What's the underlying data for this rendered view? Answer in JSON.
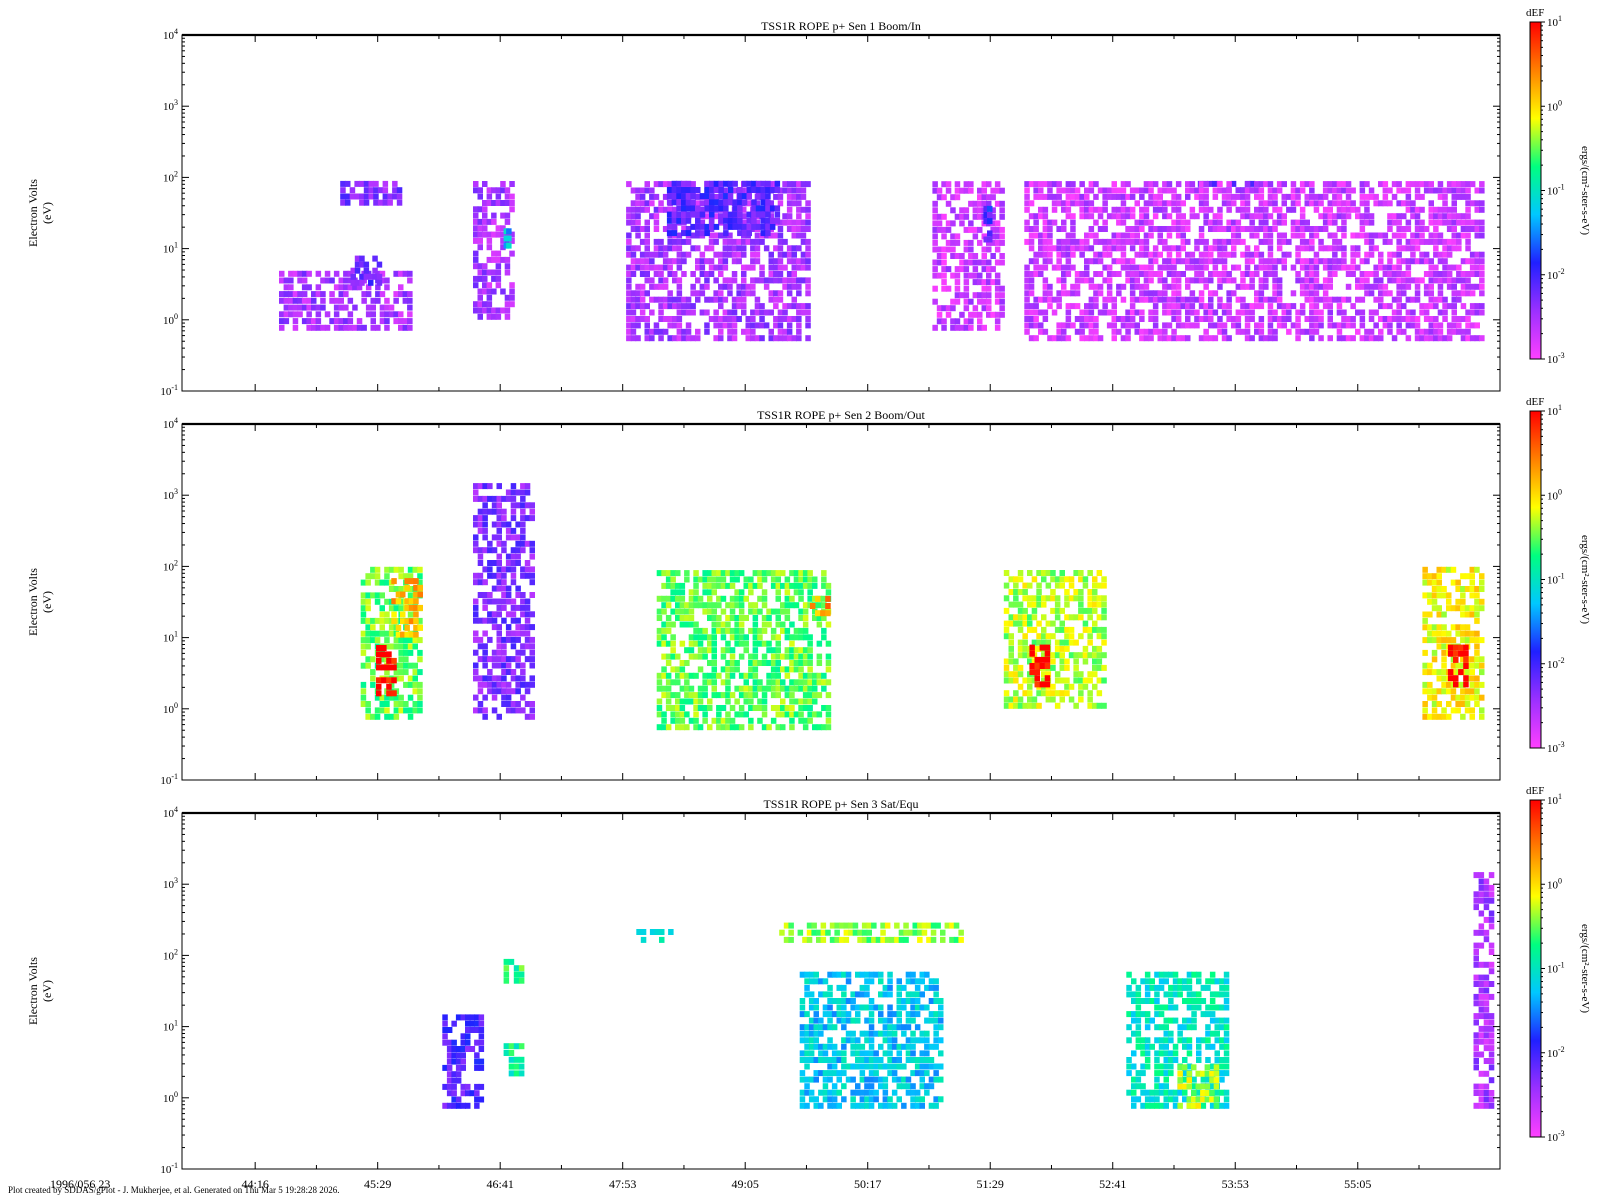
{
  "chart_data": {
    "type": "heatmap",
    "date_label": "1996/056 23",
    "x_tick_labels": [
      "44:16",
      "45:29",
      "46:41",
      "47:53",
      "49:05",
      "50:17",
      "51:29",
      "52:41",
      "53:53",
      "55:05"
    ],
    "y_scale": "log",
    "y_tick_values": [
      0.1,
      1,
      10,
      100,
      1000,
      10000
    ],
    "ylim": [
      0.1,
      10000
    ],
    "colorbar": {
      "title": "dEF",
      "unit": "ergs/(cm²-ster-s-eV)",
      "scale": "log",
      "range": [
        0.001,
        10
      ],
      "tick_values": [
        0.001,
        0.01,
        0.1,
        1,
        10
      ],
      "colors": [
        "#ff40ff",
        "#9b30ff",
        "#2020ff",
        "#00c8ff",
        "#00ff80",
        "#ffff00",
        "#ff8000",
        "#ff0000"
      ]
    },
    "panels": [
      {
        "title": "TSS1R ROPE p+ Sen 1 Boom/In",
        "ylabel_line1": "Electron Volts",
        "ylabel_line2": "(eV)",
        "features": [
          {
            "t": [
              44.5,
              45.8
            ],
            "e": [
              0.7,
              5
            ],
            "dEF": 0.003
          },
          {
            "t": [
              45.1,
              45.7
            ],
            "e": [
              40,
              90
            ],
            "dEF": 0.005
          },
          {
            "t": [
              45.2,
              45.5
            ],
            "e": [
              3,
              8
            ],
            "dEF": 0.006
          },
          {
            "t": [
              46.4,
              46.8
            ],
            "e": [
              1,
              90
            ],
            "dEF": 0.003
          },
          {
            "t": [
              46.7,
              46.75
            ],
            "e": [
              10,
              20
            ],
            "dEF": 0.05
          },
          {
            "t": [
              47.9,
              49.7
            ],
            "e": [
              0.5,
              90
            ],
            "dEF": 0.003
          },
          {
            "t": [
              48.3,
              49.4
            ],
            "e": [
              15,
              90
            ],
            "dEF": 0.008
          },
          {
            "t": [
              50.9,
              51.6
            ],
            "e": [
              0.7,
              90
            ],
            "dEF": 0.002
          },
          {
            "t": [
              51.4,
              51.47
            ],
            "e": [
              10,
              40
            ],
            "dEF": 0.01
          },
          {
            "t": [
              53.5,
              54.1
            ],
            "e": [
              60,
              90
            ],
            "dEF": 0.006
          },
          {
            "t": [
              51.8,
              56.3
            ],
            "e": [
              0.5,
              90
            ],
            "dEF": 0.002
          }
        ]
      },
      {
        "title": "TSS1R ROPE p+ Sen 2 Boom/Out",
        "ylabel_line1": "Electron Volts",
        "ylabel_line2": "(eV)",
        "features": [
          {
            "t": [
              45.3,
              45.9
            ],
            "e": [
              0.7,
              100
            ],
            "dEF": 0.3
          },
          {
            "t": [
              45.45,
              45.65
            ],
            "e": [
              1.5,
              8
            ],
            "dEF": 10
          },
          {
            "t": [
              45.6,
              45.9
            ],
            "e": [
              10,
              70
            ],
            "dEF": 1.5
          },
          {
            "t": [
              46.4,
              47.0
            ],
            "e": [
              0.7,
              1500
            ],
            "dEF": 0.005
          },
          {
            "t": [
              48.2,
              49.9
            ],
            "e": [
              0.5,
              90
            ],
            "dEF": 0.3
          },
          {
            "t": [
              49.7,
              49.9
            ],
            "e": [
              20,
              40
            ],
            "dEF": 2
          },
          {
            "t": [
              51.6,
              52.6
            ],
            "e": [
              1,
              90
            ],
            "dEF": 0.5
          },
          {
            "t": [
              51.85,
              52.05
            ],
            "e": [
              2,
              8
            ],
            "dEF": 10
          },
          {
            "t": [
              55.7,
              56.3
            ],
            "e": [
              0.7,
              100
            ],
            "dEF": 0.8
          },
          {
            "t": [
              55.95,
              56.15
            ],
            "e": [
              2,
              8
            ],
            "dEF": 10
          }
        ]
      },
      {
        "title": "TSS1R ROPE p+ Sen 3 Sat/Equ",
        "ylabel_line1": "Electron Volts",
        "ylabel_line2": "(eV)",
        "features": [
          {
            "t": [
              46.1,
              46.5
            ],
            "e": [
              0.7,
              15
            ],
            "dEF": 0.008
          },
          {
            "t": [
              46.7,
              46.9
            ],
            "e": [
              40,
              90
            ],
            "dEF": 0.2
          },
          {
            "t": [
              46.7,
              46.9
            ],
            "e": [
              2,
              6
            ],
            "dEF": 0.15
          },
          {
            "t": [
              48.0,
              48.4
            ],
            "e": [
              150,
              250
            ],
            "dEF": 0.1
          },
          {
            "t": [
              49.4,
              51.2
            ],
            "e": [
              150,
              300
            ],
            "dEF": 0.4
          },
          {
            "t": [
              49.6,
              51.0
            ],
            "e": [
              0.7,
              60
            ],
            "dEF": 0.06
          },
          {
            "t": [
              52.8,
              53.8
            ],
            "e": [
              0.7,
              60
            ],
            "dEF": 0.1
          },
          {
            "t": [
              53.3,
              53.7
            ],
            "e": [
              0.7,
              3
            ],
            "dEF": 0.5
          },
          {
            "t": [
              56.2,
              56.4
            ],
            "e": [
              0.7,
              1500
            ],
            "dEF": 0.003
          }
        ]
      }
    ]
  },
  "footer": "Plot created by SDDAS/gPlot - J. Mukherjee, et al.  Generated on Thu Mar 5 19:28:28 2026."
}
